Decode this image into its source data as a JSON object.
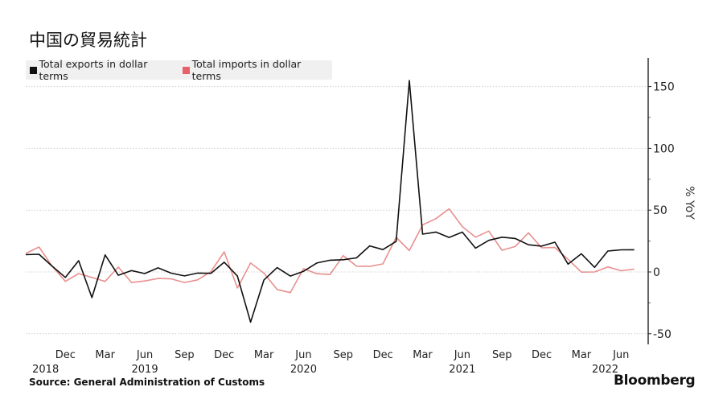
{
  "title": "中国の貿易統計",
  "source": "Source: General Administration of Customs",
  "brand": "Bloomberg",
  "colors": {
    "exports": "#111111",
    "imports": "#e8908f",
    "imports_swatch": "#e8606a",
    "grid": "#d0d0d0"
  },
  "chart_data": {
    "type": "line",
    "title": "中国の貿易統計",
    "ylabel": "% YoY",
    "xlabel": "",
    "ylim": [
      -55,
      172
    ],
    "yticks": [
      150,
      100,
      50,
      0,
      -50
    ],
    "grid": true,
    "legend_position": "top-left",
    "x_month_labels": [
      {
        "label": "Dec",
        "index": 3
      },
      {
        "label": "Mar",
        "index": 6
      },
      {
        "label": "Jun",
        "index": 9
      },
      {
        "label": "Sep",
        "index": 12
      },
      {
        "label": "Dec",
        "index": 15
      },
      {
        "label": "Mar",
        "index": 18
      },
      {
        "label": "Jun",
        "index": 21
      },
      {
        "label": "Sep",
        "index": 24
      },
      {
        "label": "Dec",
        "index": 27
      },
      {
        "label": "Mar",
        "index": 30
      },
      {
        "label": "Jun",
        "index": 33
      },
      {
        "label": "Sep",
        "index": 36
      },
      {
        "label": "Dec",
        "index": 39
      },
      {
        "label": "Mar",
        "index": 42
      },
      {
        "label": "Jun",
        "index": 45
      }
    ],
    "x_year_labels": [
      {
        "label": "2018",
        "index": 1.5
      },
      {
        "label": "2019",
        "index": 9
      },
      {
        "label": "2020",
        "index": 21
      },
      {
        "label": "2021",
        "index": 33
      },
      {
        "label": "2022",
        "index": 43.8
      }
    ],
    "x": [
      "2018-09",
      "2018-10",
      "2018-11",
      "2018-12",
      "2019-01",
      "2019-02",
      "2019-03",
      "2019-04",
      "2019-05",
      "2019-06",
      "2019-07",
      "2019-08",
      "2019-09",
      "2019-10",
      "2019-11",
      "2019-12",
      "2020-01",
      "2020-02",
      "2020-03",
      "2020-04",
      "2020-05",
      "2020-06",
      "2020-07",
      "2020-08",
      "2020-09",
      "2020-10",
      "2020-11",
      "2020-12",
      "2021-01",
      "2021-02",
      "2021-03",
      "2021-04",
      "2021-05",
      "2021-06",
      "2021-07",
      "2021-08",
      "2021-09",
      "2021-10",
      "2021-11",
      "2021-12",
      "2022-01",
      "2022-02",
      "2022-03",
      "2022-04",
      "2022-05",
      "2022-06",
      "2022-07"
    ],
    "series": [
      {
        "name": "Total exports in dollar terms",
        "values": [
          14,
          14.3,
          4.6,
          -4.4,
          9.1,
          -20.8,
          13.8,
          -2.7,
          1.1,
          -1.3,
          3.3,
          -1.0,
          -3.2,
          -0.9,
          -1.1,
          7.9,
          -3.3,
          -40.6,
          -6.6,
          3.5,
          -3.3,
          0.5,
          7.2,
          9.5,
          9.9,
          11.4,
          21.1,
          18.1,
          24.7,
          154.9,
          30.6,
          32.3,
          27.9,
          32.2,
          19.3,
          25.6,
          28.1,
          27.1,
          22.0,
          20.9,
          24.1,
          6.3,
          14.7,
          3.7,
          16.9,
          17.9,
          18.0
        ]
      },
      {
        "name": "Total imports in dollar terms",
        "values": [
          15,
          20.2,
          4.6,
          -7.6,
          -1.3,
          -4.5,
          -7.6,
          4.0,
          -8.5,
          -7.3,
          -5.3,
          -5.6,
          -8.5,
          -6.4,
          0.3,
          16.3,
          -13.0,
          7.2,
          -0.9,
          -14.2,
          -16.7,
          2.7,
          -1.4,
          -2.1,
          13.2,
          4.7,
          4.5,
          6.5,
          28.0,
          17.3,
          38.1,
          43.1,
          51.1,
          36.7,
          28.1,
          33.1,
          17.6,
          20.6,
          31.7,
          19.5,
          19.8,
          10.2,
          -0.1,
          0.0,
          4.1,
          1.0,
          2.3
        ]
      }
    ]
  }
}
